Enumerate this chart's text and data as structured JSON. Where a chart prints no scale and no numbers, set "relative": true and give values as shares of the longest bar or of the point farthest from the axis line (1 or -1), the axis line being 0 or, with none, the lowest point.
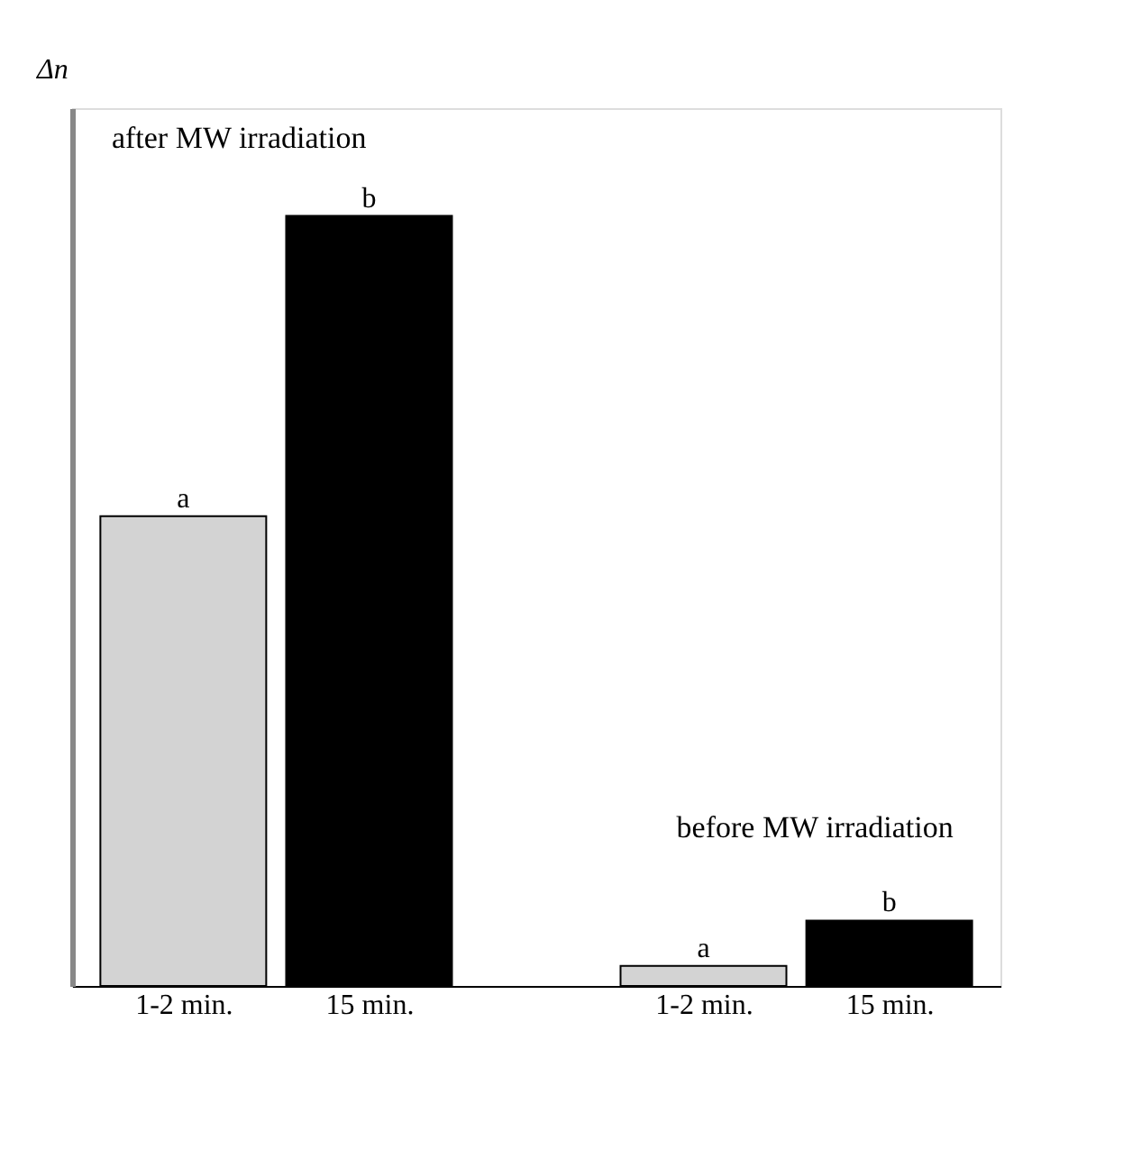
{
  "chart_data": {
    "type": "bar",
    "relative": true,
    "ylabel": "Δn",
    "categories": [
      "1-2 min.",
      "15 min.",
      "1-2 min.",
      "15 min."
    ],
    "values": [
      0.61,
      1,
      0.026,
      0.085
    ],
    "colors": [
      "#d3d3d3",
      "#000000",
      "#d3d3d3",
      "#000000"
    ],
    "annotations": [
      "after MW irradiation",
      "before MW irradiation",
      "a",
      "b",
      "a",
      "b"
    ],
    "grid": false
  }
}
